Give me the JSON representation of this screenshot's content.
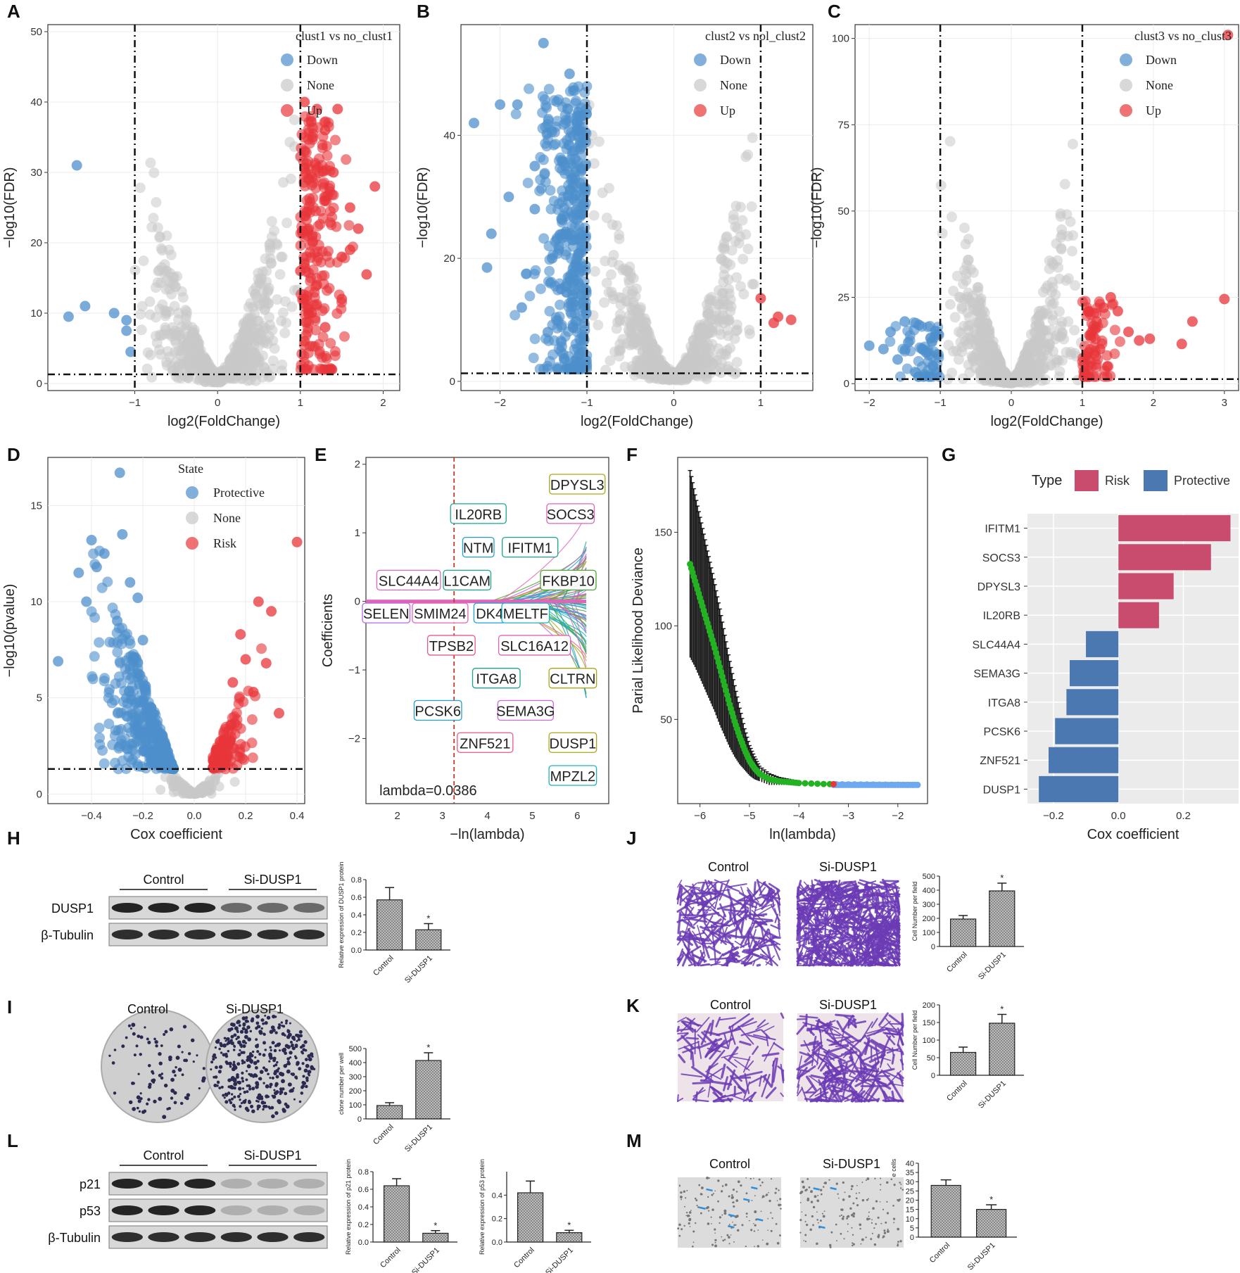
{
  "panel_labels": [
    "A",
    "B",
    "C",
    "D",
    "E",
    "F",
    "G",
    "H",
    "I",
    "J",
    "K",
    "L",
    "M"
  ],
  "chart_data": [
    {
      "id": "A",
      "type": "scatter",
      "title": "clust1 vs no_clust1",
      "xlabel": "log2(FoldChange)",
      "ylabel": "−log10(FDR)",
      "xlim": [
        -2.05,
        2.2
      ],
      "ylim": [
        -1,
        51
      ],
      "xticks": [
        -1,
        0,
        1,
        2
      ],
      "yticks": [
        0,
        10,
        20,
        30,
        40,
        50
      ],
      "thresholds": {
        "x": [
          -1,
          1
        ],
        "y": 1.3
      },
      "legend": [
        {
          "name": "Down",
          "color": "#4d8fcc"
        },
        {
          "name": "None",
          "color": "#c8c8c8"
        },
        {
          "name": "Up",
          "color": "#e8363a"
        }
      ],
      "highlight_points": {
        "Down": [
          [
            -1.7,
            31
          ],
          [
            -1.6,
            11
          ],
          [
            -1.8,
            9.5
          ],
          [
            -1.25,
            10
          ],
          [
            -1.1,
            9
          ],
          [
            -1.1,
            7.5
          ],
          [
            -1.05,
            4.5
          ]
        ],
        "Up": [
          [
            1.05,
            40
          ],
          [
            1.2,
            39
          ],
          [
            1.3,
            36
          ],
          [
            1.9,
            28
          ],
          [
            1.6,
            25
          ],
          [
            1.7,
            22
          ],
          [
            1.6,
            19
          ],
          [
            1.8,
            15.5
          ],
          [
            1.15,
            35
          ],
          [
            1.4,
            30
          ],
          [
            1.3,
            26
          ],
          [
            1.1,
            22
          ],
          [
            1.5,
            18
          ],
          [
            1.2,
            14
          ],
          [
            1.1,
            10
          ],
          [
            1.05,
            6
          ],
          [
            1.3,
            8
          ],
          [
            1.45,
            39
          ],
          [
            1.5,
            12
          ],
          [
            1.0,
            16
          ]
        ]
      }
    },
    {
      "id": "B",
      "type": "scatter",
      "title": "clust2 vs nol_clust2",
      "xlabel": "log2(FoldChange)",
      "ylabel": "−log10(FDR)",
      "xlim": [
        -2.45,
        1.6
      ],
      "ylim": [
        -1.5,
        58
      ],
      "xticks": [
        -2,
        -1,
        0,
        1
      ],
      "yticks": [
        0,
        20,
        40
      ],
      "thresholds": {
        "x": [
          -1,
          1
        ],
        "y": 1.3
      },
      "legend": [
        {
          "name": "Down",
          "color": "#4d8fcc"
        },
        {
          "name": "None",
          "color": "#c8c8c8"
        },
        {
          "name": "Up",
          "color": "#e8363a"
        }
      ],
      "highlight_points": {
        "Down": [
          [
            -1.5,
            55
          ],
          [
            -2.3,
            42
          ],
          [
            -2.0,
            45
          ],
          [
            -1.8,
            45
          ],
          [
            -1.2,
            50
          ],
          [
            -1.6,
            35
          ],
          [
            -2.1,
            24
          ],
          [
            -2.15,
            18.5
          ],
          [
            -1.9,
            30
          ],
          [
            -1.75,
            12
          ],
          [
            -1.15,
            2.5
          ],
          [
            -1.4,
            20
          ],
          [
            -1.3,
            15
          ],
          [
            -1.6,
            28
          ],
          [
            -1.25,
            35
          ],
          [
            -1.45,
            8
          ]
        ],
        "Up": [
          [
            1.0,
            13.5
          ],
          [
            1.2,
            10.5
          ],
          [
            1.35,
            10
          ],
          [
            1.15,
            9.5
          ]
        ]
      }
    },
    {
      "id": "C",
      "type": "scatter",
      "title": "clust3 vs no_clust3",
      "xlabel": "log2(FoldChange)",
      "ylabel": "−log10(FDR)",
      "xlim": [
        -2.2,
        3.2
      ],
      "ylim": [
        -2,
        104
      ],
      "xticks": [
        -2,
        -1,
        0,
        1,
        2,
        3
      ],
      "yticks": [
        0,
        25,
        50,
        75,
        100
      ],
      "thresholds": {
        "x": [
          -1,
          1
        ],
        "y": 1.3
      },
      "legend": [
        {
          "name": "Down",
          "color": "#4d8fcc"
        },
        {
          "name": "None",
          "color": "#c8c8c8"
        },
        {
          "name": "Up",
          "color": "#e8363a"
        }
      ],
      "highlight_points": {
        "Down": [
          [
            -2.0,
            11
          ],
          [
            -1.7,
            15
          ],
          [
            -1.5,
            18
          ],
          [
            -1.3,
            17
          ],
          [
            -1.6,
            7
          ],
          [
            -1.2,
            9
          ],
          [
            -1.1,
            5
          ],
          [
            -1.45,
            12
          ],
          [
            -1.8,
            10
          ],
          [
            -1.05,
            3
          ]
        ],
        "Up": [
          [
            3.05,
            101
          ],
          [
            3.0,
            24.5
          ],
          [
            2.55,
            18
          ],
          [
            2.4,
            11.5
          ],
          [
            1.95,
            13
          ],
          [
            1.8,
            12.5
          ],
          [
            1.65,
            15
          ],
          [
            1.4,
            25
          ],
          [
            1.3,
            22
          ],
          [
            1.5,
            21
          ],
          [
            1.2,
            18
          ],
          [
            1.1,
            14
          ],
          [
            1.05,
            8
          ],
          [
            1.25,
            10
          ],
          [
            1.35,
            5
          ]
        ]
      }
    },
    {
      "id": "D",
      "type": "scatter",
      "title": "",
      "xlabel": "Cox coefficient",
      "ylabel": "−log10(pvalue)",
      "xlim": [
        -0.57,
        0.43
      ],
      "ylim": [
        -0.5,
        17.5
      ],
      "xticks": [
        -0.4,
        -0.2,
        0.0,
        0.2,
        0.4
      ],
      "yticks": [
        0,
        5,
        10,
        15
      ],
      "threshold_y": 1.3,
      "legend_title": "State",
      "legend": [
        {
          "name": "Protective",
          "color": "#4d8fcc"
        },
        {
          "name": "None",
          "color": "#c8c8c8"
        },
        {
          "name": "Risk",
          "color": "#e8363a"
        }
      ],
      "highlight_points": {
        "Protective": [
          [
            -0.29,
            16.7
          ],
          [
            -0.53,
            6.9
          ],
          [
            -0.28,
            13.5
          ],
          [
            -0.4,
            13.2
          ],
          [
            -0.35,
            12.5
          ],
          [
            -0.25,
            11
          ],
          [
            -0.42,
            10
          ],
          [
            -0.3,
            9
          ],
          [
            -0.2,
            8
          ],
          [
            -0.45,
            11.5
          ],
          [
            -0.38,
            11.8
          ],
          [
            -0.22,
            10.2
          ]
        ],
        "Risk": [
          [
            0.4,
            13.1
          ],
          [
            0.25,
            10
          ],
          [
            0.3,
            9.5
          ],
          [
            0.18,
            8.3
          ],
          [
            0.2,
            7
          ],
          [
            0.28,
            6.8
          ],
          [
            0.23,
            5.3
          ],
          [
            0.33,
            4.2
          ],
          [
            0.15,
            5.8
          ]
        ]
      }
    },
    {
      "id": "E",
      "type": "line",
      "title": "",
      "xlabel": "−ln(lambda)",
      "ylabel": "Coefficients",
      "xlim": [
        1.3,
        6.7
      ],
      "ylim": [
        -2.95,
        2.1
      ],
      "xticks": [
        2,
        3,
        4,
        5,
        6
      ],
      "yticks": [
        -2,
        -1,
        0,
        1,
        2
      ],
      "vline": 3.26,
      "annotation": "lambda=0.0386",
      "gene_labels": [
        {
          "name": "DPYSL3",
          "color": "#a9a814",
          "x": 6.0,
          "y": 1.7
        },
        {
          "name": "IL20RB",
          "color": "#17a88a",
          "x": 3.8,
          "y": 1.27
        },
        {
          "name": "SOCS3",
          "color": "#e064b8",
          "x": 5.85,
          "y": 1.27
        },
        {
          "name": "NTM",
          "color": "#1f9fd0",
          "x": 3.8,
          "y": 0.78
        },
        {
          "name": "IFITM1",
          "color": "#17a88a",
          "x": 4.95,
          "y": 0.78
        },
        {
          "name": "SLC44A4",
          "color": "#e064b8",
          "x": 2.25,
          "y": 0.3
        },
        {
          "name": "L1CAM",
          "color": "#17a88a",
          "x": 3.55,
          "y": 0.3
        },
        {
          "name": "FKBP10",
          "color": "#47a82a",
          "x": 5.8,
          "y": 0.3
        },
        {
          "name": "SELEN",
          "color": "#b568e0",
          "x": 1.75,
          "y": -0.18
        },
        {
          "name": "SMIM24",
          "color": "#e064b8",
          "x": 2.95,
          "y": -0.18
        },
        {
          "name": "DK4",
          "color": "#1f9fd0",
          "x": 4.05,
          "y": -0.18
        },
        {
          "name": "MELTF",
          "color": "#1fb2c0",
          "x": 4.85,
          "y": -0.18
        },
        {
          "name": "TPSB2",
          "color": "#e55a87",
          "x": 3.2,
          "y": -0.65
        },
        {
          "name": "SLC16A12",
          "color": "#e064b8",
          "x": 5.05,
          "y": -0.65
        },
        {
          "name": "ITGA8",
          "color": "#17a88a",
          "x": 4.2,
          "y": -1.13
        },
        {
          "name": "CLTRN",
          "color": "#a9a814",
          "x": 5.9,
          "y": -1.13
        },
        {
          "name": "PCSK6",
          "color": "#1f9fd0",
          "x": 2.9,
          "y": -1.6
        },
        {
          "name": "SEMA3G",
          "color": "#d064e0",
          "x": 4.85,
          "y": -1.6
        },
        {
          "name": "ZNF521",
          "color": "#e55a87",
          "x": 3.95,
          "y": -2.07
        },
        {
          "name": "DUSP1",
          "color": "#a9a814",
          "x": 5.9,
          "y": -2.07
        },
        {
          "name": "MPZL2",
          "color": "#1fb2c0",
          "x": 5.9,
          "y": -2.55
        }
      ]
    },
    {
      "id": "F",
      "type": "line",
      "title": "",
      "xlabel": "ln(lambda)",
      "ylabel": "Parial Likelihood Deviance",
      "xlim": [
        -6.45,
        -1.4
      ],
      "ylim": [
        5,
        190
      ],
      "xticks": [
        -6,
        -5,
        -4,
        -3,
        -2
      ],
      "yticks": [
        50,
        100,
        150
      ],
      "segments": [
        {
          "name": "cv path",
          "color": "#22b222",
          "x_from": -6.2,
          "x_to": -3.3
        },
        {
          "name": "tail",
          "color": "#6ea8f0",
          "x_from": -3.3,
          "x_to": -1.6
        },
        {
          "name": "selected",
          "color": "#e8363a",
          "x_from": -3.3,
          "x_to": -3.3
        }
      ],
      "x": [
        -6.2,
        -6.1,
        -6.0,
        -5.9,
        -5.8,
        -5.7,
        -5.6,
        -5.5,
        -5.4,
        -5.3,
        -5.2,
        -5.1,
        -5.0,
        -4.9,
        -4.8,
        -4.6,
        -4.4,
        -4.2,
        -4.0,
        -3.5,
        -3.0,
        -2.5,
        -2.0,
        -1.6
      ],
      "y": [
        133,
        124,
        115,
        106,
        97,
        88,
        78,
        68,
        58,
        49,
        41,
        34,
        28,
        24,
        21,
        18,
        17,
        16.5,
        16,
        15.5,
        15.3,
        15.2,
        15.1,
        15
      ],
      "err": [
        50,
        46,
        43,
        40,
        37,
        34,
        31,
        27,
        23,
        19,
        15,
        11,
        8,
        6,
        4,
        3,
        2,
        1.5,
        1,
        0.8,
        0.6,
        0.5,
        0.4,
        0.3
      ]
    },
    {
      "id": "G",
      "type": "bar",
      "title": "",
      "xlabel": "Cox coefficient",
      "legend_title": "Type",
      "legend": [
        {
          "name": "Risk",
          "color": "#c94b6d"
        },
        {
          "name": "Protective",
          "color": "#4b78b0"
        }
      ],
      "xlim": [
        -0.28,
        0.37
      ],
      "xticks": [
        -0.2,
        0.0,
        0.2
      ],
      "categories": [
        "IFITM1",
        "SOCS3",
        "DPYSL3",
        "IL20RB",
        "SLC44A4",
        "SEMA3G",
        "ITGA8",
        "PCSK6",
        "ZNF521",
        "DUSP1"
      ],
      "values": [
        0.345,
        0.285,
        0.17,
        0.125,
        -0.1,
        -0.15,
        -0.16,
        -0.195,
        -0.215,
        -0.245
      ],
      "types": [
        "Risk",
        "Risk",
        "Risk",
        "Risk",
        "Protective",
        "Protective",
        "Protective",
        "Protective",
        "Protective",
        "Protective"
      ]
    },
    {
      "id": "H",
      "type": "bar",
      "ylabel": "Relative expression of DUSP1 protein",
      "categories": [
        "Control",
        "Si-DUSP1"
      ],
      "values": [
        0.57,
        0.23
      ],
      "errors": [
        0.14,
        0.07
      ],
      "ylim": [
        0,
        0.8
      ],
      "yticks": [
        0.0,
        0.2,
        0.4,
        0.6,
        0.8
      ],
      "significance": [
        "",
        "*"
      ]
    },
    {
      "id": "I",
      "type": "bar",
      "ylabel": "clone number per well",
      "categories": [
        "Control",
        "Si-DUSP1"
      ],
      "values": [
        95,
        415
      ],
      "errors": [
        20,
        55
      ],
      "ylim": [
        0,
        500
      ],
      "yticks": [
        0,
        100,
        200,
        300,
        400,
        500
      ],
      "significance": [
        "",
        "*"
      ]
    },
    {
      "id": "J",
      "type": "bar",
      "ylabel": "Cell Number per field",
      "categories": [
        "Control",
        "Si-DUSP1"
      ],
      "values": [
        195,
        395
      ],
      "errors": [
        25,
        55
      ],
      "ylim": [
        0,
        500
      ],
      "yticks": [
        0,
        100,
        200,
        300,
        400,
        500
      ],
      "significance": [
        "",
        "*"
      ]
    },
    {
      "id": "K",
      "type": "bar",
      "ylabel": "Cell Number per field",
      "categories": [
        "Control",
        "Si-DUSP1"
      ],
      "values": [
        65,
        148
      ],
      "errors": [
        15,
        25
      ],
      "ylim": [
        0,
        200
      ],
      "yticks": [
        0,
        50,
        100,
        150,
        200
      ],
      "significance": [
        "",
        "*"
      ]
    },
    {
      "id": "L1",
      "type": "bar",
      "ylabel": "Relative expression of p21 protein",
      "categories": [
        "Control",
        "Si-DUSP1"
      ],
      "values": [
        0.64,
        0.1
      ],
      "errors": [
        0.08,
        0.03
      ],
      "ylim": [
        0,
        0.8
      ],
      "yticks": [
        0.0,
        0.2,
        0.4,
        0.6,
        0.8
      ],
      "significance": [
        "",
        "*"
      ]
    },
    {
      "id": "L2",
      "type": "bar",
      "ylabel": "Relative expression of p53 protein",
      "categories": [
        "Control",
        "Si-DUSP1"
      ],
      "values": [
        0.42,
        0.08
      ],
      "errors": [
        0.1,
        0.02
      ],
      "ylim": [
        0,
        0.6
      ],
      "yticks": [
        0.0,
        0.2,
        0.4
      ],
      "significance": [
        "",
        "*"
      ]
    },
    {
      "id": "M",
      "type": "bar",
      "ylabel": "Numbers of senescence cells",
      "categories": [
        "Control",
        "Si-DUSP1"
      ],
      "values": [
        28,
        15
      ],
      "errors": [
        3,
        2.5
      ],
      "ylim": [
        0,
        40
      ],
      "yticks": [
        0,
        5,
        10,
        15,
        20,
        25,
        30,
        35,
        40
      ],
      "significance": [
        "",
        "*"
      ]
    }
  ],
  "blots": {
    "H": {
      "groups": [
        "Control",
        "Si-DUSP1"
      ],
      "rows": [
        "DUSP1",
        "β-Tubulin"
      ]
    },
    "L": {
      "groups": [
        "Control",
        "Si-DUSP1"
      ],
      "rows": [
        "p21",
        "p53",
        "β-Tubulin"
      ]
    }
  },
  "image_captions": {
    "I": [
      "Control",
      "Si-DUSP1"
    ],
    "J": [
      "Control",
      "Si-DUSP1"
    ],
    "K": [
      "Control",
      "Si-DUSP1"
    ],
    "M": [
      "Control",
      "Si-DUSP1"
    ]
  },
  "colors": {
    "down": "#4d8fcc",
    "none": "#c8c8c8",
    "up": "#e8363a",
    "risk": "#c94b6d",
    "protective": "#4b78b0",
    "stain": "#6b3bb5"
  }
}
